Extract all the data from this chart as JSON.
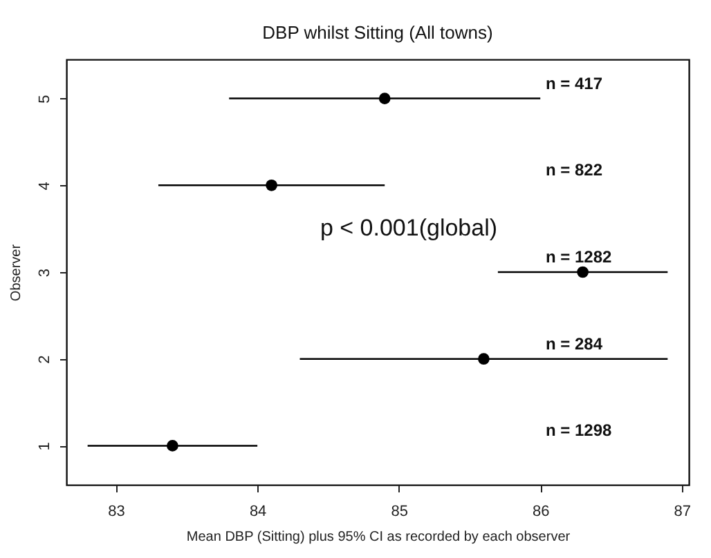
{
  "chart_data": {
    "type": "scatter",
    "title": "DBP whilst Sitting (All towns)",
    "xlabel": "Mean DBP (Sitting) plus 95% CI as recorded by each observer",
    "ylabel": "Observer",
    "x": [
      83.4,
      85.6,
      86.3,
      84.1,
      84.9
    ],
    "values": [
      1,
      2,
      3,
      4,
      5
    ],
    "xerrors": [
      [
        82.8,
        84.0
      ],
      [
        84.3,
        86.9
      ],
      [
        85.7,
        86.9
      ],
      [
        83.3,
        84.9
      ],
      [
        83.8,
        86.0
      ]
    ],
    "color": "#000000",
    "marker": "circle",
    "grid": false,
    "xlim": [
      82.65,
      87.05
    ],
    "xticks": [
      83,
      84,
      85,
      86,
      87
    ],
    "ylim": [
      0.55,
      5.45
    ],
    "yticks": [
      1,
      2,
      3,
      4,
      5
    ],
    "annotations": [
      "n = 1298",
      "n = 284",
      "n = 1282",
      "n = 822",
      "n = 417",
      "p < 0.001(global)"
    ]
  }
}
